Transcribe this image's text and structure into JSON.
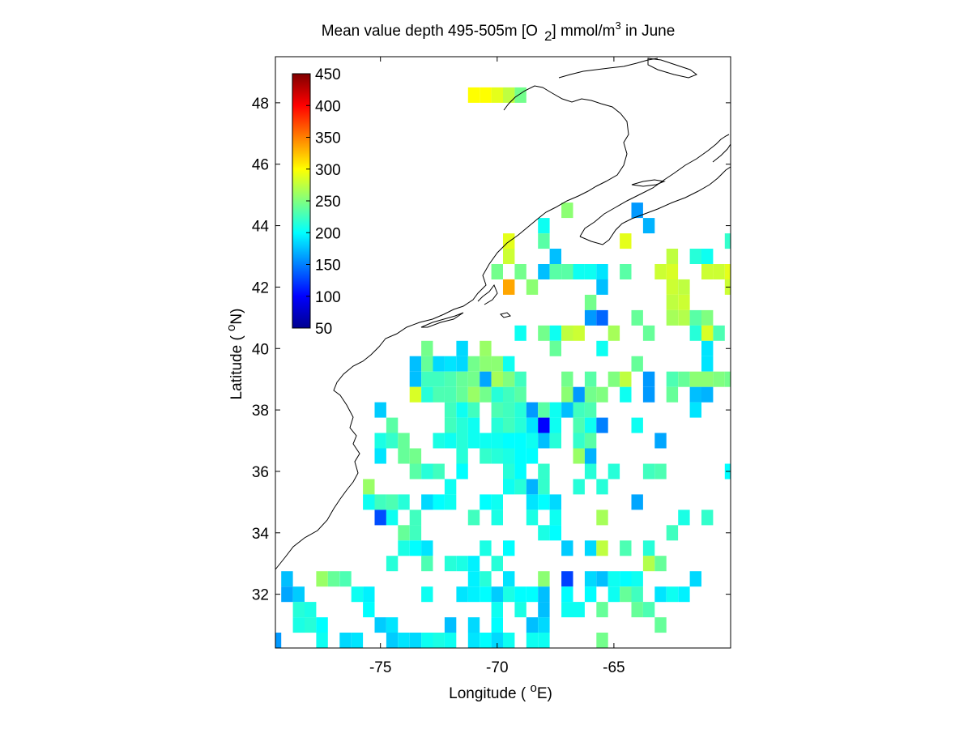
{
  "title": {
    "main": "Mean value depth 495-505m [O",
    "sub": "2",
    "mid": "] mmol/m",
    "sup": "3",
    "tail": " in June"
  },
  "xlabel": {
    "pre": "Longitude ( ",
    "sup": "o",
    "post": "E)"
  },
  "ylabel": {
    "pre": "Latitude ( ",
    "sup": "o",
    "post": "N)"
  },
  "colors": {
    "background": "#ffffff",
    "coast": "#000000"
  },
  "chart_data": {
    "type": "heatmap",
    "xlim": [
      -79.5,
      -60
    ],
    "ylim": [
      30.25,
      49.5
    ],
    "cell_size_deg": 0.5,
    "x_ticks": [
      -75,
      -70,
      -65
    ],
    "x_tick_labels": [
      "-75",
      "-70",
      "-65"
    ],
    "y_ticks": [
      32,
      34,
      36,
      38,
      40,
      42,
      44,
      46,
      48
    ],
    "y_tick_labels": [
      "32",
      "34",
      "36",
      "38",
      "40",
      "42",
      "44",
      "46",
      "48"
    ],
    "colorbar": {
      "range": [
        50,
        450
      ],
      "colormap": "jet",
      "ticks": [
        50,
        100,
        150,
        200,
        250,
        300,
        350,
        400,
        450
      ],
      "tick_labels": [
        "50",
        "100",
        "150",
        "200",
        "250",
        "300",
        "350",
        "400",
        "450"
      ],
      "placement": "upper-left inside map"
    },
    "cells": [
      [
        -71,
        48.25,
        300
      ],
      [
        -70.5,
        48.25,
        300
      ],
      [
        -70,
        48.25,
        290
      ],
      [
        -69.5,
        48.25,
        275
      ],
      [
        -69,
        48.25,
        245
      ],
      [
        -67,
        44.5,
        255
      ],
      [
        -64,
        44.5,
        160
      ],
      [
        -68,
        44,
        205
      ],
      [
        -63.5,
        44,
        170
      ],
      [
        -69.5,
        43.5,
        290
      ],
      [
        -68,
        43.5,
        235
      ],
      [
        -64.5,
        43.5,
        290
      ],
      [
        -60,
        43.5,
        220
      ],
      [
        -69.5,
        43,
        280
      ],
      [
        -67.5,
        43,
        175
      ],
      [
        -62.5,
        43,
        275
      ],
      [
        -61.5,
        43,
        215
      ],
      [
        -61,
        43,
        205
      ],
      [
        -70,
        42.5,
        245
      ],
      [
        -69,
        42.5,
        245
      ],
      [
        -68,
        42.5,
        175
      ],
      [
        -67.5,
        42.5,
        235
      ],
      [
        -67,
        42.5,
        235
      ],
      [
        -66.5,
        42.5,
        205
      ],
      [
        -66,
        42.5,
        205
      ],
      [
        -65.5,
        42.5,
        190
      ],
      [
        -64.5,
        42.5,
        235
      ],
      [
        -63,
        42.5,
        280
      ],
      [
        -62.5,
        42.5,
        285
      ],
      [
        -61,
        42.5,
        280
      ],
      [
        -60.5,
        42.5,
        280
      ],
      [
        -60,
        42.5,
        290
      ],
      [
        -69.5,
        42,
        335
      ],
      [
        -68.5,
        42,
        255
      ],
      [
        -65.5,
        42,
        175
      ],
      [
        -62.5,
        42,
        280
      ],
      [
        -62,
        42,
        275
      ],
      [
        -60,
        42,
        280
      ],
      [
        -66,
        41.5,
        245
      ],
      [
        -62.5,
        41.5,
        275
      ],
      [
        -62,
        41.5,
        280
      ],
      [
        -66,
        41,
        160
      ],
      [
        -65.5,
        41,
        140
      ],
      [
        -64,
        41,
        240
      ],
      [
        -62.5,
        41,
        265
      ],
      [
        -62,
        41,
        270
      ],
      [
        -61.5,
        41,
        235
      ],
      [
        -61,
        41,
        250
      ],
      [
        -69,
        40.5,
        205
      ],
      [
        -68,
        40.5,
        245
      ],
      [
        -67.5,
        40.5,
        205
      ],
      [
        -67,
        40.5,
        275
      ],
      [
        -66.5,
        40.5,
        280
      ],
      [
        -65,
        40.5,
        265
      ],
      [
        -63.5,
        40.5,
        240
      ],
      [
        -61.5,
        40.5,
        215
      ],
      [
        -61,
        40.5,
        285
      ],
      [
        -60.5,
        40.5,
        230
      ],
      [
        -73,
        40,
        245
      ],
      [
        -71.5,
        40,
        185
      ],
      [
        -70.5,
        40,
        260
      ],
      [
        -67.5,
        40,
        240
      ],
      [
        -65.5,
        40,
        205
      ],
      [
        -61,
        40,
        190
      ],
      [
        -73.5,
        39.5,
        175
      ],
      [
        -73,
        39.5,
        240
      ],
      [
        -72.5,
        39.5,
        185
      ],
      [
        -72,
        39.5,
        190
      ],
      [
        -71.5,
        39.5,
        185
      ],
      [
        -71,
        39.5,
        245
      ],
      [
        -70.5,
        39.5,
        255
      ],
      [
        -70,
        39.5,
        255
      ],
      [
        -69.5,
        39.5,
        205
      ],
      [
        -64,
        39.5,
        240
      ],
      [
        -61,
        39.5,
        190
      ],
      [
        -73.5,
        39,
        175
      ],
      [
        -73,
        39,
        225
      ],
      [
        -72.5,
        39,
        225
      ],
      [
        -72,
        39,
        230
      ],
      [
        -71.5,
        39,
        240
      ],
      [
        -71,
        39,
        245
      ],
      [
        -70.5,
        39,
        165
      ],
      [
        -70,
        39,
        265
      ],
      [
        -69.5,
        39,
        250
      ],
      [
        -69,
        39,
        225
      ],
      [
        -67,
        39,
        245
      ],
      [
        -66,
        39,
        235
      ],
      [
        -65,
        39,
        250
      ],
      [
        -64.5,
        39,
        275
      ],
      [
        -63.5,
        39,
        160
      ],
      [
        -62.5,
        39,
        230
      ],
      [
        -62,
        39,
        240
      ],
      [
        -61.5,
        39,
        255
      ],
      [
        -61,
        39,
        255
      ],
      [
        -60.5,
        39,
        250
      ],
      [
        -60,
        39,
        245
      ],
      [
        -73.5,
        38.5,
        285
      ],
      [
        -73,
        38.5,
        215
      ],
      [
        -72.5,
        38.5,
        230
      ],
      [
        -72,
        38.5,
        230
      ],
      [
        -71.5,
        38.5,
        240
      ],
      [
        -71,
        38.5,
        260
      ],
      [
        -70.5,
        38.5,
        245
      ],
      [
        -70,
        38.5,
        215
      ],
      [
        -69.5,
        38.5,
        225
      ],
      [
        -69,
        38.5,
        235
      ],
      [
        -67,
        38.5,
        255
      ],
      [
        -66.5,
        38.5,
        160
      ],
      [
        -66,
        38.5,
        245
      ],
      [
        -65.5,
        38.5,
        250
      ],
      [
        -64.5,
        38.5,
        205
      ],
      [
        -63.5,
        38.5,
        160
      ],
      [
        -62.5,
        38.5,
        240
      ],
      [
        -61.5,
        38.5,
        175
      ],
      [
        -61,
        38.5,
        170
      ],
      [
        -75,
        38,
        180
      ],
      [
        -72,
        38,
        225
      ],
      [
        -71.5,
        38,
        205
      ],
      [
        -71,
        38,
        225
      ],
      [
        -70,
        38,
        230
      ],
      [
        -69.5,
        38,
        225
      ],
      [
        -69,
        38,
        215
      ],
      [
        -68.5,
        38,
        160
      ],
      [
        -68,
        38,
        235
      ],
      [
        -67.5,
        38,
        205
      ],
      [
        -67,
        38,
        175
      ],
      [
        -66.5,
        38,
        225
      ],
      [
        -66,
        38,
        230
      ],
      [
        -61.5,
        38,
        190
      ],
      [
        -74.5,
        37.5,
        235
      ],
      [
        -72,
        37.5,
        225
      ],
      [
        -71.5,
        37.5,
        215
      ],
      [
        -71,
        37.5,
        205
      ],
      [
        -70,
        37.5,
        215
      ],
      [
        -69.5,
        37.5,
        225
      ],
      [
        -69,
        37.5,
        215
      ],
      [
        -68.5,
        37.5,
        190
      ],
      [
        -68,
        37.5,
        100
      ],
      [
        -67.5,
        37.5,
        205
      ],
      [
        -66.5,
        37.5,
        230
      ],
      [
        -66,
        37.5,
        205
      ],
      [
        -65.5,
        37.5,
        150
      ],
      [
        -64,
        37.5,
        205
      ],
      [
        -75,
        37,
        210
      ],
      [
        -74.5,
        37,
        220
      ],
      [
        -74,
        37,
        240
      ],
      [
        -72.5,
        37,
        210
      ],
      [
        -72,
        37,
        205
      ],
      [
        -71.5,
        37,
        215
      ],
      [
        -71,
        37,
        205
      ],
      [
        -70.5,
        37,
        205
      ],
      [
        -70,
        37,
        205
      ],
      [
        -69.5,
        37,
        200
      ],
      [
        -69,
        37,
        200
      ],
      [
        -68.5,
        37,
        205
      ],
      [
        -68,
        37,
        175
      ],
      [
        -67.5,
        37,
        215
      ],
      [
        -66.5,
        37,
        220
      ],
      [
        -66,
        37,
        235
      ],
      [
        -63,
        37,
        165
      ],
      [
        -75,
        36.5,
        190
      ],
      [
        -74,
        36.5,
        240
      ],
      [
        -73.5,
        36.5,
        245
      ],
      [
        -71.5,
        36.5,
        215
      ],
      [
        -70.5,
        36.5,
        220
      ],
      [
        -70,
        36.5,
        215
      ],
      [
        -69.5,
        36.5,
        210
      ],
      [
        -69,
        36.5,
        200
      ],
      [
        -68.5,
        36.5,
        200
      ],
      [
        -66.5,
        36.5,
        260
      ],
      [
        -66,
        36.5,
        170
      ],
      [
        -73.5,
        36,
        235
      ],
      [
        -73,
        36,
        215
      ],
      [
        -72.5,
        36,
        225
      ],
      [
        -71.5,
        36,
        200
      ],
      [
        -69.5,
        36,
        215
      ],
      [
        -69,
        36,
        200
      ],
      [
        -68,
        36,
        220
      ],
      [
        -66,
        36,
        215
      ],
      [
        -65,
        36,
        215
      ],
      [
        -63.5,
        36,
        225
      ],
      [
        -63,
        36,
        230
      ],
      [
        -60,
        36,
        200
      ],
      [
        -75.5,
        35.5,
        260
      ],
      [
        -72,
        35.5,
        205
      ],
      [
        -69.5,
        35.5,
        205
      ],
      [
        -69,
        35.5,
        215
      ],
      [
        -68.5,
        35.5,
        170
      ],
      [
        -68,
        35.5,
        220
      ],
      [
        -66.5,
        35.5,
        215
      ],
      [
        -65.5,
        35.5,
        215
      ],
      [
        -75.5,
        35,
        205
      ],
      [
        -75,
        35,
        225
      ],
      [
        -74.5,
        35,
        230
      ],
      [
        -74,
        35,
        215
      ],
      [
        -73,
        35,
        185
      ],
      [
        -72.5,
        35,
        200
      ],
      [
        -72,
        35,
        205
      ],
      [
        -70.5,
        35,
        200
      ],
      [
        -70,
        35,
        205
      ],
      [
        -68.5,
        35,
        190
      ],
      [
        -68,
        35,
        200
      ],
      [
        -67.5,
        35,
        185
      ],
      [
        -64,
        35,
        165
      ],
      [
        -75,
        34.5,
        130
      ],
      [
        -74.5,
        34.5,
        205
      ],
      [
        -73.5,
        34.5,
        225
      ],
      [
        -71,
        34.5,
        225
      ],
      [
        -70,
        34.5,
        210
      ],
      [
        -68.5,
        34.5,
        210
      ],
      [
        -67.5,
        34.5,
        205
      ],
      [
        -65.5,
        34.5,
        265
      ],
      [
        -62,
        34.5,
        210
      ],
      [
        -61,
        34.5,
        220
      ],
      [
        -74,
        34,
        240
      ],
      [
        -73.5,
        34,
        225
      ],
      [
        -68,
        34,
        210
      ],
      [
        -67.5,
        34,
        200
      ],
      [
        -62.5,
        34,
        225
      ],
      [
        -74,
        33.5,
        210
      ],
      [
        -73.5,
        33.5,
        200
      ],
      [
        -73,
        33.5,
        190
      ],
      [
        -70.5,
        33.5,
        210
      ],
      [
        -69.5,
        33.5,
        200
      ],
      [
        -67,
        33.5,
        180
      ],
      [
        -66,
        33.5,
        185
      ],
      [
        -65.5,
        33.5,
        275
      ],
      [
        -64.5,
        33.5,
        230
      ],
      [
        -63.5,
        33.5,
        215
      ],
      [
        -74.5,
        33,
        215
      ],
      [
        -73,
        33,
        230
      ],
      [
        -72,
        33,
        215
      ],
      [
        -71.5,
        33,
        210
      ],
      [
        -71,
        33,
        195
      ],
      [
        -70,
        33,
        215
      ],
      [
        -63.5,
        33,
        270
      ],
      [
        -63,
        33,
        240
      ],
      [
        -79,
        32.5,
        175
      ],
      [
        -77.5,
        32.5,
        260
      ],
      [
        -77,
        32.5,
        240
      ],
      [
        -76.5,
        32.5,
        230
      ],
      [
        -71,
        32.5,
        195
      ],
      [
        -70.5,
        32.5,
        215
      ],
      [
        -69.5,
        32.5,
        190
      ],
      [
        -68,
        32.5,
        255
      ],
      [
        -67,
        32.5,
        125
      ],
      [
        -66,
        32.5,
        185
      ],
      [
        -65.5,
        32.5,
        175
      ],
      [
        -65,
        32.5,
        205
      ],
      [
        -64.5,
        32.5,
        200
      ],
      [
        -64,
        32.5,
        205
      ],
      [
        -61.5,
        32.5,
        185
      ],
      [
        -79,
        32,
        165
      ],
      [
        -78.5,
        32,
        180
      ],
      [
        -76,
        32,
        205
      ],
      [
        -75.5,
        32,
        195
      ],
      [
        -73,
        32,
        205
      ],
      [
        -71.5,
        32,
        190
      ],
      [
        -71,
        32,
        195
      ],
      [
        -70.5,
        32,
        200
      ],
      [
        -70,
        32,
        180
      ],
      [
        -69.5,
        32,
        210
      ],
      [
        -69,
        32,
        200
      ],
      [
        -68.5,
        32,
        200
      ],
      [
        -68,
        32,
        175
      ],
      [
        -67,
        32,
        200
      ],
      [
        -66,
        32,
        200
      ],
      [
        -65,
        32,
        205
      ],
      [
        -64.5,
        32,
        240
      ],
      [
        -64,
        32,
        225
      ],
      [
        -63,
        32,
        190
      ],
      [
        -62.5,
        32,
        205
      ],
      [
        -62,
        32,
        195
      ],
      [
        -78.5,
        31.5,
        215
      ],
      [
        -78,
        31.5,
        210
      ],
      [
        -75.5,
        31.5,
        200
      ],
      [
        -70,
        31.5,
        205
      ],
      [
        -69,
        31.5,
        210
      ],
      [
        -68,
        31.5,
        175
      ],
      [
        -67,
        31.5,
        205
      ],
      [
        -66.5,
        31.5,
        205
      ],
      [
        -65.5,
        31.5,
        240
      ],
      [
        -64,
        31.5,
        240
      ],
      [
        -63.5,
        31.5,
        230
      ],
      [
        -78.5,
        31,
        210
      ],
      [
        -78,
        31,
        215
      ],
      [
        -77.5,
        31,
        200
      ],
      [
        -75,
        31,
        180
      ],
      [
        -74.5,
        31,
        190
      ],
      [
        -72,
        31,
        175
      ],
      [
        -71,
        31,
        185
      ],
      [
        -70,
        31,
        200
      ],
      [
        -68.5,
        31,
        175
      ],
      [
        -68,
        31,
        185
      ],
      [
        -63,
        31,
        240
      ],
      [
        -79.5,
        30.5,
        160
      ],
      [
        -77.5,
        30.5,
        205
      ],
      [
        -76.5,
        30.5,
        185
      ],
      [
        -76,
        30.5,
        190
      ],
      [
        -74.5,
        30.5,
        180
      ],
      [
        -74,
        30.5,
        190
      ],
      [
        -73.5,
        30.5,
        185
      ],
      [
        -73,
        30.5,
        205
      ],
      [
        -72.5,
        30.5,
        210
      ],
      [
        -72,
        30.5,
        205
      ],
      [
        -71,
        30.5,
        190
      ],
      [
        -70.5,
        30.5,
        200
      ],
      [
        -70,
        30.5,
        185
      ],
      [
        -69.5,
        30.5,
        205
      ],
      [
        -68.5,
        30.5,
        205
      ],
      [
        -68,
        30.5,
        205
      ],
      [
        -65.5,
        30.5,
        245
      ]
    ]
  }
}
